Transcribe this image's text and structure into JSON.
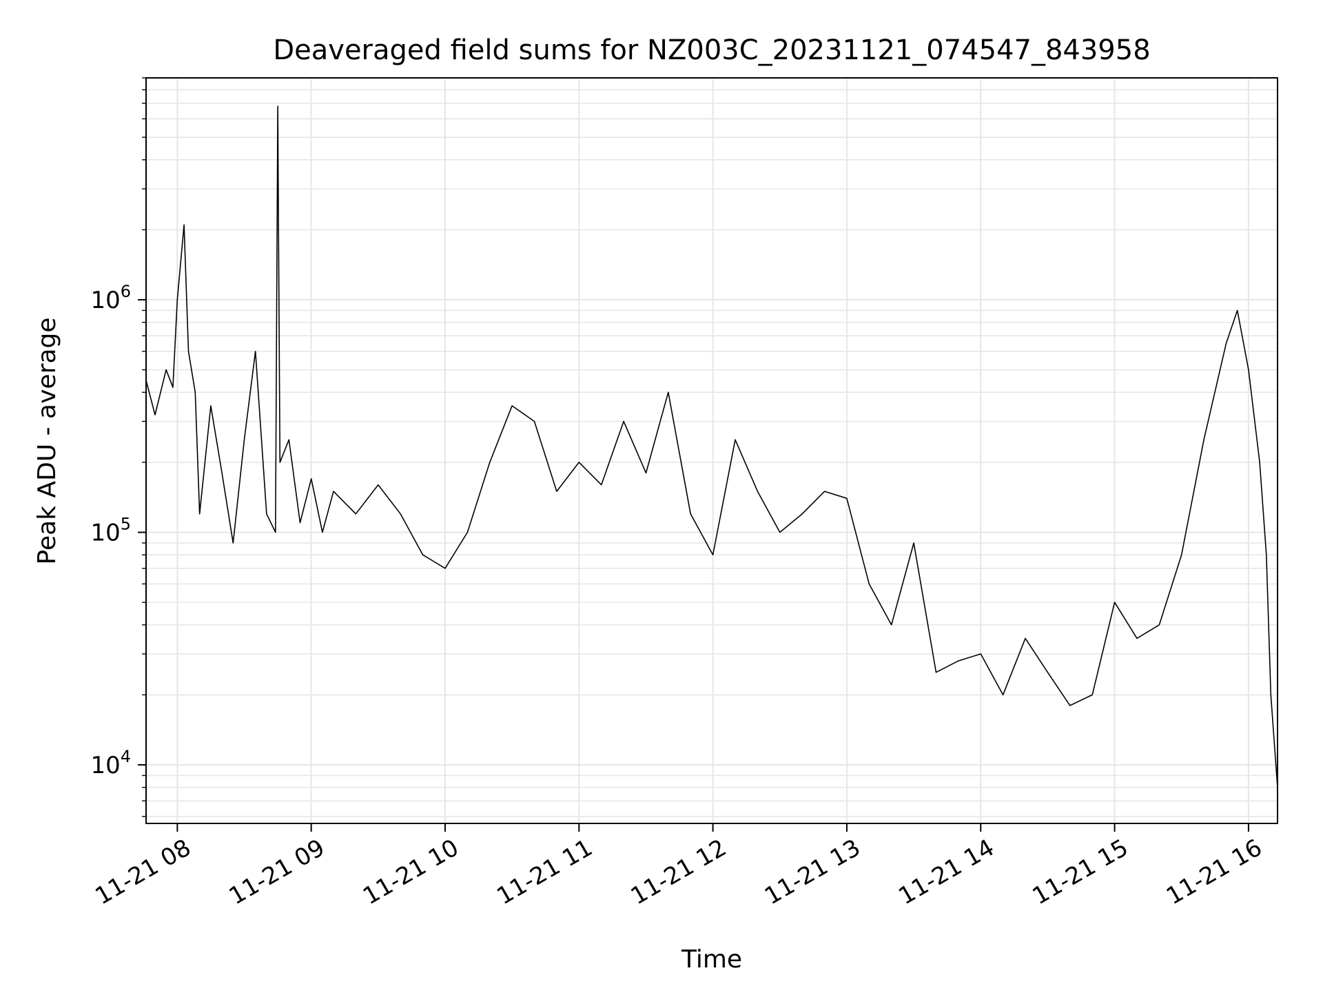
{
  "chart_data": {
    "type": "line",
    "title": "Deaveraged field sums for NZ003C_20231121_074547_843958",
    "xlabel": "Time",
    "ylabel": "Peak ADU - average",
    "y_scale": "log",
    "xlim": [
      "2023-11-21 07:46",
      "2023-11-21 16:13"
    ],
    "ylim": [
      5600,
      9000000
    ],
    "x_tick_labels": [
      "11-21 08",
      "11-21 09",
      "11-21 10",
      "11-21 11",
      "11-21 12",
      "11-21 13",
      "11-21 14",
      "11-21 15",
      "11-21 16"
    ],
    "x_tick_values": [
      "2023-11-21 08:00",
      "2023-11-21 09:00",
      "2023-11-21 10:00",
      "2023-11-21 11:00",
      "2023-11-21 12:00",
      "2023-11-21 13:00",
      "2023-11-21 14:00",
      "2023-11-21 15:00",
      "2023-11-21 16:00"
    ],
    "y_tick_labels": [
      {
        "base": "10",
        "exp": "4"
      },
      {
        "base": "10",
        "exp": "5"
      },
      {
        "base": "10",
        "exp": "6"
      }
    ],
    "y_tick_values": [
      10000,
      100000,
      1000000
    ],
    "grid": true,
    "line_color": "#000000",
    "grid_color": "#e6e6e6",
    "series": [
      {
        "x": [
          "2023-11-21 07:46",
          "2023-11-21 07:50",
          "2023-11-21 07:55",
          "2023-11-21 07:58",
          "2023-11-21 08:00",
          "2023-11-21 08:03",
          "2023-11-21 08:05",
          "2023-11-21 08:08",
          "2023-11-21 08:10",
          "2023-11-21 08:15",
          "2023-11-21 08:20",
          "2023-11-21 08:25",
          "2023-11-21 08:30",
          "2023-11-21 08:35",
          "2023-11-21 08:40",
          "2023-11-21 08:44",
          "2023-11-21 08:45",
          "2023-11-21 08:46",
          "2023-11-21 08:50",
          "2023-11-21 08:55",
          "2023-11-21 09:00",
          "2023-11-21 09:05",
          "2023-11-21 09:10",
          "2023-11-21 09:20",
          "2023-11-21 09:30",
          "2023-11-21 09:40",
          "2023-11-21 09:50",
          "2023-11-21 10:00",
          "2023-11-21 10:10",
          "2023-11-21 10:20",
          "2023-11-21 10:30",
          "2023-11-21 10:40",
          "2023-11-21 10:50",
          "2023-11-21 11:00",
          "2023-11-21 11:10",
          "2023-11-21 11:20",
          "2023-11-21 11:30",
          "2023-11-21 11:40",
          "2023-11-21 11:50",
          "2023-11-21 12:00",
          "2023-11-21 12:10",
          "2023-11-21 12:20",
          "2023-11-21 12:30",
          "2023-11-21 12:40",
          "2023-11-21 12:50",
          "2023-11-21 13:00",
          "2023-11-21 13:10",
          "2023-11-21 13:20",
          "2023-11-21 13:30",
          "2023-11-21 13:40",
          "2023-11-21 13:50",
          "2023-11-21 14:00",
          "2023-11-21 14:10",
          "2023-11-21 14:20",
          "2023-11-21 14:30",
          "2023-11-21 14:40",
          "2023-11-21 14:50",
          "2023-11-21 15:00",
          "2023-11-21 15:10",
          "2023-11-21 15:20",
          "2023-11-21 15:30",
          "2023-11-21 15:40",
          "2023-11-21 15:50",
          "2023-11-21 15:55",
          "2023-11-21 16:00",
          "2023-11-21 16:05",
          "2023-11-21 16:08",
          "2023-11-21 16:10",
          "2023-11-21 16:13"
        ],
        "y": [
          450000,
          320000,
          500000,
          420000,
          1000000,
          2100000,
          600000,
          400000,
          120000,
          350000,
          180000,
          90000,
          250000,
          600000,
          120000,
          100000,
          6800000,
          200000,
          250000,
          110000,
          170000,
          100000,
          150000,
          120000,
          160000,
          120000,
          80000,
          70000,
          100000,
          200000,
          350000,
          300000,
          150000,
          200000,
          160000,
          300000,
          180000,
          400000,
          120000,
          80000,
          250000,
          150000,
          100000,
          120000,
          150000,
          140000,
          60000,
          40000,
          90000,
          25000,
          28000,
          30000,
          20000,
          35000,
          25000,
          18000,
          20000,
          50000,
          35000,
          40000,
          80000,
          250000,
          650000,
          900000,
          500000,
          200000,
          80000,
          20000,
          8000
        ]
      }
    ]
  }
}
